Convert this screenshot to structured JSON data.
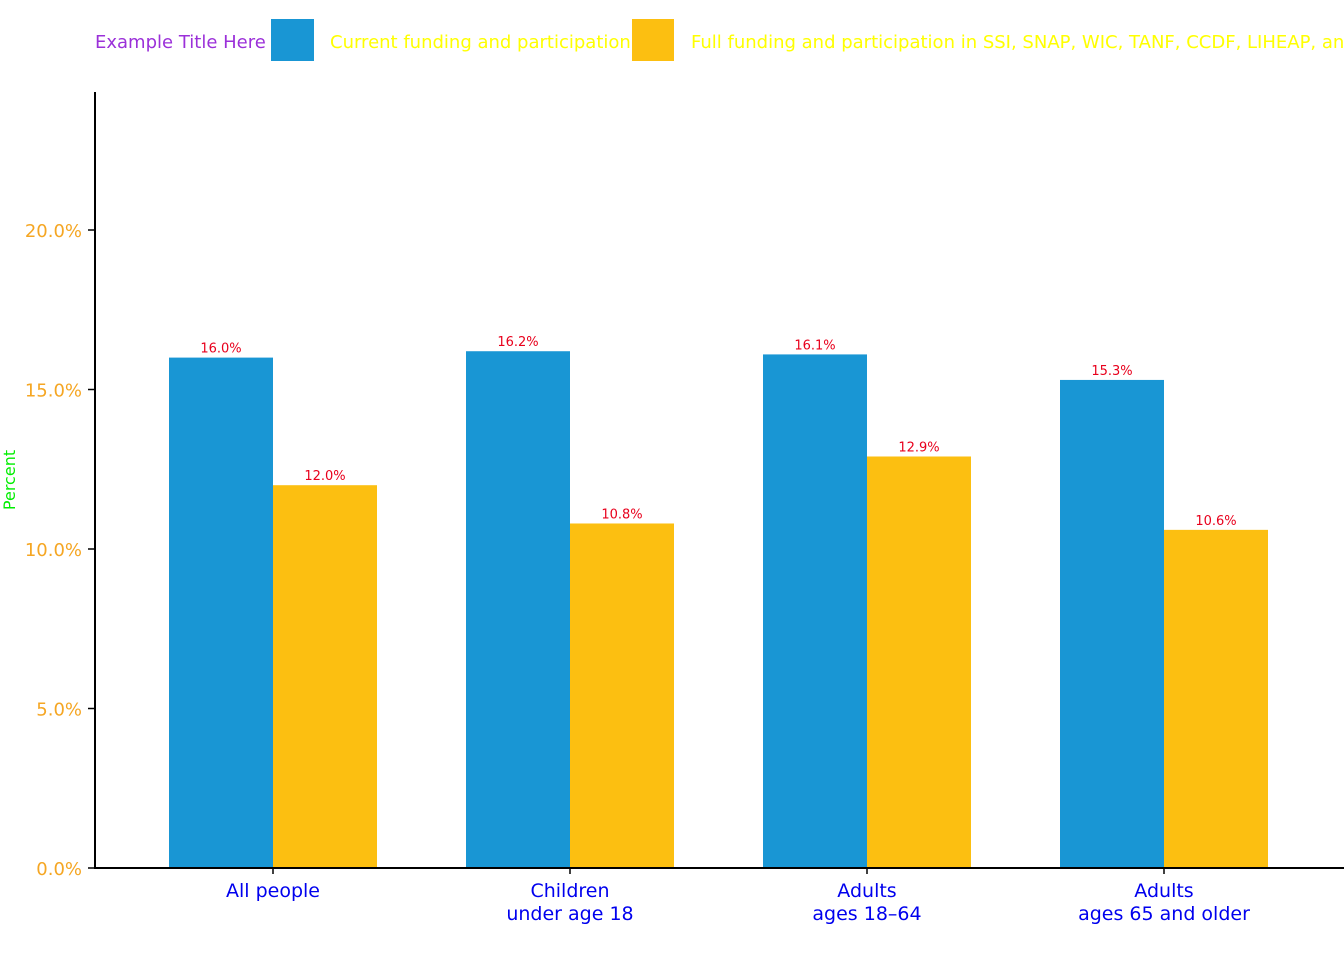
{
  "colors": {
    "series_current": "#1996d4",
    "series_full": "#fcbf11",
    "title": "#9b30d9",
    "legend_text": "#ffff00",
    "tick_text": "#f5a623",
    "category_text": "#0000ee",
    "ylabel_text": "#00ee00",
    "data_label": "#e8001c",
    "axis": "#000000"
  },
  "chart_data": {
    "type": "bar",
    "title": "Example Title Here",
    "ylabel": "Percent",
    "xlabel": "",
    "ylim": [
      0,
      24
    ],
    "yticks": [
      {
        "value": 0,
        "label": "0.0%"
      },
      {
        "value": 5,
        "label": "5.0%"
      },
      {
        "value": 10,
        "label": "10.0%"
      },
      {
        "value": 15,
        "label": "15.0%"
      },
      {
        "value": 20,
        "label": "20.0%"
      }
    ],
    "legend_position": "top",
    "grid": false,
    "categories": [
      [
        "All people"
      ],
      [
        "Children",
        "under age 18"
      ],
      [
        "Adults",
        "ages 18–64"
      ],
      [
        "Adults",
        "ages 65 and older"
      ]
    ],
    "series": [
      {
        "name": "Current funding and participation",
        "color_key": "series_current",
        "values": [
          16.0,
          16.2,
          16.1,
          15.3
        ],
        "labels": [
          "16.0%",
          "16.2%",
          "16.1%",
          "15.3%"
        ]
      },
      {
        "name": "Full funding and participation in SSI, SNAP, WIC, TANF, CCDF, LIHEAP, and ho",
        "color_key": "series_full",
        "values": [
          12.0,
          10.8,
          12.9,
          10.6
        ],
        "labels": [
          "12.0%",
          "10.8%",
          "12.9%",
          "10.6%"
        ]
      }
    ]
  }
}
